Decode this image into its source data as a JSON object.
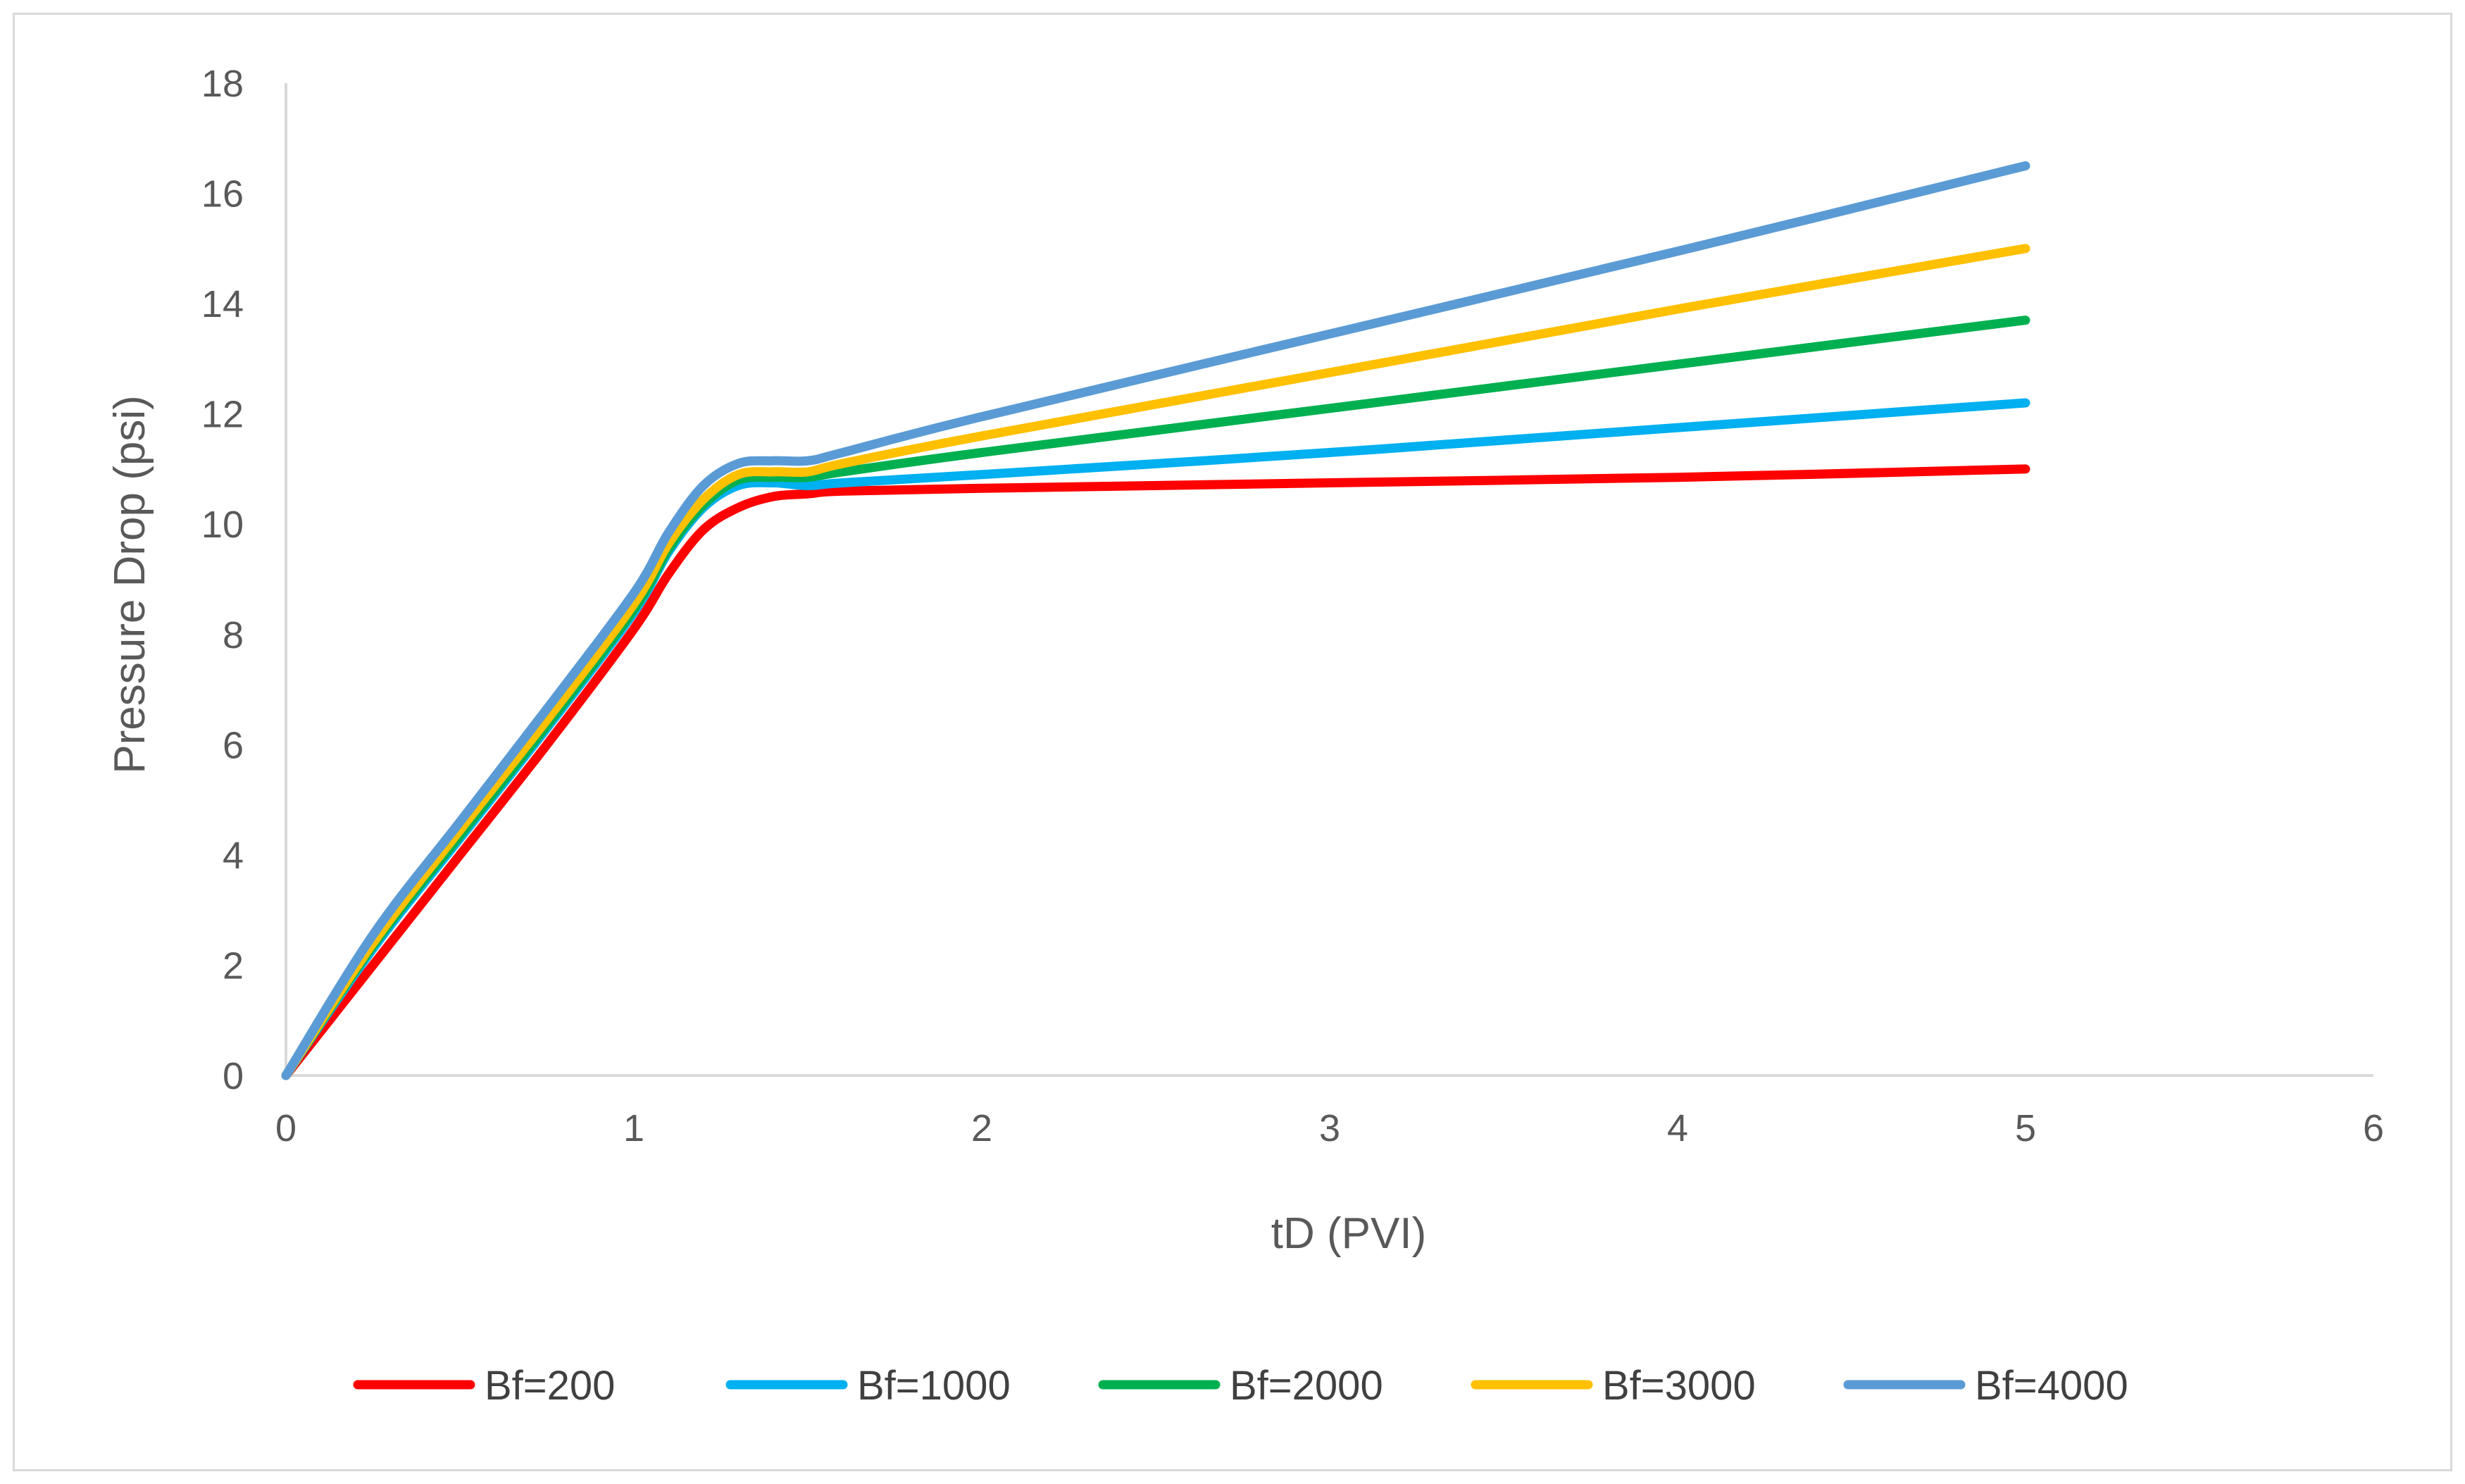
{
  "chart_data": {
    "type": "line",
    "title": "",
    "xlabel": "tD (PVI)",
    "ylabel": "Pressure Drop (psi)",
    "xlim": [
      0,
      6
    ],
    "ylim": [
      0,
      18
    ],
    "xticks": [
      "0",
      "1",
      "2",
      "3",
      "4",
      "5",
      "6"
    ],
    "yticks": [
      "0",
      "2",
      "4",
      "6",
      "8",
      "10",
      "12",
      "14",
      "16",
      "18"
    ],
    "grid": false,
    "legend_position": "bottom",
    "series": [
      {
        "name": "Bf=200",
        "color": "#ff0000",
        "points": [
          [
            0,
            0
          ],
          [
            0.25,
            2.0
          ],
          [
            0.5,
            4.0
          ],
          [
            0.75,
            6.0
          ],
          [
            1.0,
            8.1
          ],
          [
            1.1,
            9.1
          ],
          [
            1.2,
            9.9
          ],
          [
            1.3,
            10.3
          ],
          [
            1.4,
            10.5
          ],
          [
            1.5,
            10.55
          ],
          [
            1.6,
            10.6
          ],
          [
            2.0,
            10.65
          ],
          [
            3.0,
            10.75
          ],
          [
            4.0,
            10.85
          ],
          [
            5.0,
            11.0
          ]
        ]
      },
      {
        "name": "Bf=1000",
        "color": "#00b0f0",
        "points": [
          [
            0,
            0
          ],
          [
            0.25,
            2.3
          ],
          [
            0.5,
            4.3
          ],
          [
            0.75,
            6.3
          ],
          [
            1.0,
            8.4
          ],
          [
            1.1,
            9.5
          ],
          [
            1.2,
            10.3
          ],
          [
            1.3,
            10.7
          ],
          [
            1.4,
            10.75
          ],
          [
            1.5,
            10.7
          ],
          [
            1.6,
            10.75
          ],
          [
            2.0,
            10.9
          ],
          [
            3.0,
            11.3
          ],
          [
            4.0,
            11.75
          ],
          [
            5.0,
            12.2
          ]
        ]
      },
      {
        "name": "Bf=2000",
        "color": "#00b050",
        "points": [
          [
            0,
            0
          ],
          [
            0.25,
            2.35
          ],
          [
            0.5,
            4.35
          ],
          [
            0.75,
            6.35
          ],
          [
            1.0,
            8.45
          ],
          [
            1.1,
            9.55
          ],
          [
            1.2,
            10.35
          ],
          [
            1.3,
            10.8
          ],
          [
            1.4,
            10.85
          ],
          [
            1.5,
            10.85
          ],
          [
            1.6,
            10.95
          ],
          [
            2.0,
            11.3
          ],
          [
            3.0,
            12.1
          ],
          [
            4.0,
            12.9
          ],
          [
            5.0,
            13.7
          ]
        ]
      },
      {
        "name": "Bf=3000",
        "color": "#ffc000",
        "points": [
          [
            0,
            0
          ],
          [
            0.25,
            2.4
          ],
          [
            0.5,
            4.45
          ],
          [
            0.75,
            6.45
          ],
          [
            1.0,
            8.55
          ],
          [
            1.1,
            9.65
          ],
          [
            1.2,
            10.45
          ],
          [
            1.3,
            10.9
          ],
          [
            1.4,
            10.95
          ],
          [
            1.5,
            10.95
          ],
          [
            1.6,
            11.1
          ],
          [
            2.0,
            11.6
          ],
          [
            3.0,
            12.75
          ],
          [
            4.0,
            13.9
          ],
          [
            5.0,
            15.0
          ]
        ]
      },
      {
        "name": "Bf=4000",
        "color": "#5b9bd5",
        "points": [
          [
            0,
            0
          ],
          [
            0.25,
            2.55
          ],
          [
            0.5,
            4.6
          ],
          [
            0.75,
            6.65
          ],
          [
            1.0,
            8.75
          ],
          [
            1.1,
            9.85
          ],
          [
            1.2,
            10.7
          ],
          [
            1.3,
            11.1
          ],
          [
            1.4,
            11.15
          ],
          [
            1.5,
            11.15
          ],
          [
            1.6,
            11.3
          ],
          [
            2.0,
            11.95
          ],
          [
            3.0,
            13.45
          ],
          [
            4.0,
            14.95
          ],
          [
            5.0,
            16.5
          ]
        ]
      }
    ]
  }
}
